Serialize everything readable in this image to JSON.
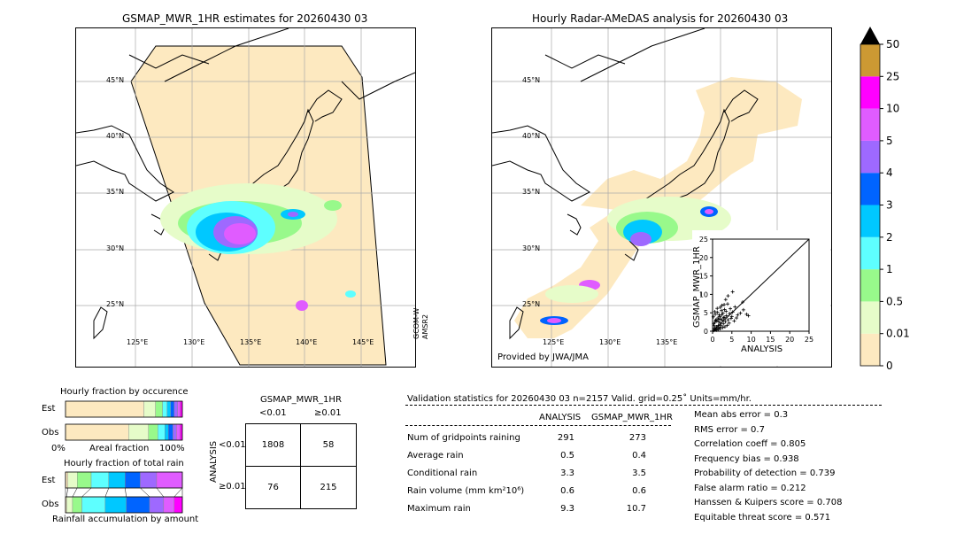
{
  "map_left": {
    "title": "GSMAP_MWR_1HR estimates for 20260430 03",
    "lat_labels": [
      "45°N",
      "40°N",
      "35°N",
      "30°N",
      "25°N"
    ],
    "lon_labels": [
      "125°E",
      "130°E",
      "135°E",
      "140°E",
      "145°E"
    ],
    "satellite_label_1": "GCOM-W",
    "satellite_label_2": "AMSR2"
  },
  "map_right": {
    "title": "Hourly Radar-AMeDAS analysis for 20260430 03",
    "lat_labels": [
      "45°N",
      "40°N",
      "35°N",
      "30°N",
      "25°N"
    ],
    "lon_labels": [
      "125°E",
      "130°E",
      "135°E"
    ],
    "provider": "Provided by JWA/JMA"
  },
  "colorbar": {
    "ticks": [
      "0",
      "0.01",
      "0.5",
      "1",
      "2",
      "3",
      "4",
      "5",
      "10",
      "25",
      "50"
    ],
    "colors": [
      "#fde9c0",
      "#e6fcc9",
      "#98f98b",
      "#5effff",
      "#00c8ff",
      "#0064ff",
      "#9e69ff",
      "#e05cff",
      "#ff00ff",
      "#cc9933"
    ],
    "over_color": "#000000"
  },
  "chart_data": [
    {
      "type": "scatter",
      "title": "",
      "xlabel": "ANALYSIS",
      "ylabel": "GSMAP_MWR_1HR",
      "xlim": [
        0,
        25
      ],
      "ylim": [
        0,
        25
      ],
      "x_ticks": [
        "0",
        "5",
        "10",
        "15",
        "20",
        "25"
      ],
      "y_ticks": [
        "0",
        "5",
        "10",
        "15",
        "20",
        "25"
      ],
      "diagonal": true,
      "points": [
        [
          0.3,
          0.2
        ],
        [
          0.5,
          0.6
        ],
        [
          0.8,
          0.4
        ],
        [
          1.0,
          1.2
        ],
        [
          1.2,
          0.8
        ],
        [
          1.5,
          1.6
        ],
        [
          1.8,
          1.1
        ],
        [
          2.0,
          2.2
        ],
        [
          2.2,
          1.5
        ],
        [
          2.5,
          3.0
        ],
        [
          0.4,
          1.5
        ],
        [
          0.6,
          2.4
        ],
        [
          0.9,
          3.1
        ],
        [
          1.1,
          2.8
        ],
        [
          1.4,
          3.6
        ],
        [
          1.6,
          2.6
        ],
        [
          1.9,
          4.0
        ],
        [
          2.1,
          3.3
        ],
        [
          2.4,
          4.5
        ],
        [
          2.8,
          2.0
        ],
        [
          3.0,
          3.8
        ],
        [
          3.3,
          2.6
        ],
        [
          3.6,
          4.2
        ],
        [
          4.0,
          3.1
        ],
        [
          4.4,
          4.8
        ],
        [
          4.8,
          3.5
        ],
        [
          5.2,
          5.2
        ],
        [
          0.2,
          3.9
        ],
        [
          0.7,
          4.6
        ],
        [
          1.3,
          5.1
        ],
        [
          1.7,
          4.4
        ],
        [
          2.3,
          5.6
        ],
        [
          2.7,
          4.9
        ],
        [
          3.1,
          5.9
        ],
        [
          3.5,
          5.4
        ],
        [
          0.5,
          0.9
        ],
        [
          1.0,
          0.3
        ],
        [
          1.5,
          0.5
        ],
        [
          2.0,
          0.7
        ],
        [
          2.6,
          1.0
        ],
        [
          3.2,
          1.2
        ],
        [
          3.8,
          1.6
        ],
        [
          4.3,
          2.2
        ],
        [
          0.3,
          2.0
        ],
        [
          0.8,
          2.9
        ],
        [
          1.6,
          3.2
        ],
        [
          2.9,
          3.6
        ],
        [
          5.0,
          4.0
        ],
        [
          5.6,
          2.8
        ],
        [
          6.2,
          3.6
        ],
        [
          3.4,
          8.6
        ],
        [
          3.9,
          7.4
        ],
        [
          4.6,
          6.1
        ],
        [
          5.8,
          6.6
        ],
        [
          6.5,
          4.4
        ],
        [
          7.2,
          4.9
        ],
        [
          8.0,
          5.8
        ],
        [
          8.8,
          4.6
        ],
        [
          9.3,
          4.2
        ],
        [
          7.8,
          7.9
        ],
        [
          4.0,
          9.6
        ],
        [
          5.2,
          10.7
        ],
        [
          2.4,
          7.0
        ],
        [
          1.2,
          6.2
        ],
        [
          0.6,
          5.3
        ],
        [
          2.0,
          6.5
        ],
        [
          3.0,
          7.2
        ]
      ]
    },
    {
      "type": "bar",
      "title": "Hourly fraction by occurence",
      "orientation": "horizontal-stacked",
      "categories": [
        "Est",
        "Obs"
      ],
      "series": [
        {
          "values": [
            0.67,
            0.54
          ]
        },
        {
          "values": [
            0.1,
            0.17
          ]
        },
        {
          "values": [
            0.06,
            0.08
          ]
        },
        {
          "values": [
            0.04,
            0.06
          ]
        },
        {
          "values": [
            0.03,
            0.03
          ]
        },
        {
          "values": [
            0.03,
            0.04
          ]
        },
        {
          "values": [
            0.03,
            0.03
          ]
        },
        {
          "values": [
            0.02,
            0.03
          ]
        },
        {
          "values": [
            0.02,
            0.02
          ]
        }
      ],
      "xlabel": "Areal fraction",
      "x_left": "0%",
      "x_right": "100%"
    },
    {
      "type": "bar",
      "title": "Hourly fraction of total rain",
      "orientation": "horizontal-stacked",
      "categories": [
        "Est",
        "Obs"
      ],
      "series": [
        {
          "values": [
            0.02,
            0.01
          ]
        },
        {
          "values": [
            0.08,
            0.05
          ]
        },
        {
          "values": [
            0.12,
            0.08
          ]
        },
        {
          "values": [
            0.15,
            0.2
          ]
        },
        {
          "values": [
            0.14,
            0.18
          ]
        },
        {
          "values": [
            0.13,
            0.2
          ]
        },
        {
          "values": [
            0.14,
            0.12
          ]
        },
        {
          "values": [
            0.22,
            0.09
          ]
        },
        {
          "values": [
            0.0,
            0.07
          ]
        }
      ],
      "xlabel": "Rainfall accumulation by amount"
    },
    {
      "type": "table",
      "title": "GSMAP_MWR_1HR",
      "col_headers": [
        "<0.01",
        "≥0.01"
      ],
      "row_axis_label": "ANALYSIS",
      "row_headers": [
        "<0.01",
        "≥0.01"
      ],
      "cells": [
        [
          "1808",
          "58"
        ],
        [
          "76",
          "215"
        ]
      ]
    }
  ],
  "validation": {
    "header": "Validation statistics for 20260430 03  n=2157 Valid. grid=0.25˚ Units=mm/hr.",
    "col_analysis": "ANALYSIS",
    "col_gsmap": "GSMAP_MWR_1HR",
    "rows": [
      {
        "label": "Num of gridpoints raining",
        "analysis": "291",
        "gsmap": "273"
      },
      {
        "label": "Average rain",
        "analysis": "0.5",
        "gsmap": "0.4"
      },
      {
        "label": "Conditional rain",
        "analysis": "3.3",
        "gsmap": "3.5"
      },
      {
        "label": "Rain volume (mm km²10⁶)",
        "analysis": "0.6",
        "gsmap": "0.6"
      },
      {
        "label": "Maximum rain",
        "analysis": "9.3",
        "gsmap": "10.7"
      }
    ],
    "scores": [
      "Mean abs error =    0.3",
      "RMS error =    0.7",
      "Correlation coeff =  0.805",
      "Frequency bias =  0.938",
      "Probability of detection =  0.739",
      "False alarm ratio =  0.212",
      "Hanssen & Kuipers score =  0.708",
      "Equitable threat score =  0.571"
    ]
  }
}
